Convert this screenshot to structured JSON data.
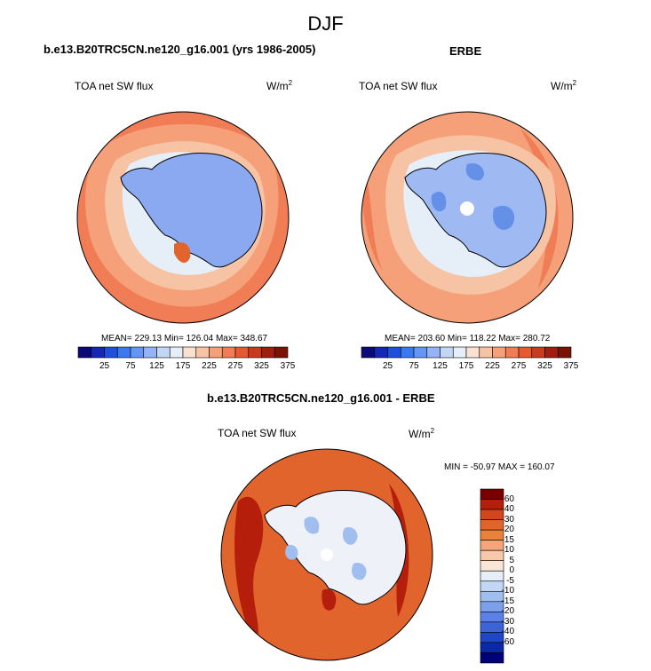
{
  "figure": {
    "title": "DJF"
  },
  "panel_model": {
    "title": "b.e13.B20TRC5CN.ne120_g16.001 (yrs 1986-2005)",
    "variable": "TOA net SW flux",
    "units_base": "W/m",
    "units_exp": "2",
    "stats": "MEAN= 229.13  Min= 126.04  Max= 348.67"
  },
  "panel_obs": {
    "title": "ERBE",
    "variable": "TOA net SW flux",
    "units_base": "W/m",
    "units_exp": "2",
    "stats": "MEAN= 203.60  Min= 118.22  Max= 280.72"
  },
  "panel_diff": {
    "title": "b.e13.B20TRC5CN.ne120_g16.001 - ERBE",
    "variable": "TOA net SW flux",
    "units_base": "W/m",
    "units_exp": "2",
    "stats": "MIN = -50.97 MAX = 160.07"
  },
  "colorbar_abs": {
    "colors": [
      "#0a0a78",
      "#1428b4",
      "#1e50dc",
      "#3c78f0",
      "#6496f5",
      "#96b4f5",
      "#c3d7f5",
      "#e6eef8",
      "#fbe1d2",
      "#f7c3a5",
      "#f5a078",
      "#f07d55",
      "#e65a32",
      "#c83c1e",
      "#a01e0f",
      "#781405"
    ],
    "tick_labels": [
      "25",
      "75",
      "125",
      "175",
      "225",
      "275",
      "325",
      "375"
    ]
  },
  "colorbar_diff": {
    "colors": [
      "#780000",
      "#b41e0a",
      "#d2461e",
      "#e1642d",
      "#eb823c",
      "#f5a578",
      "#f7c8aa",
      "#fae6d7",
      "#e6eef8",
      "#c3d7f5",
      "#a0bef0",
      "#7da0eb",
      "#5a82e6",
      "#3c64d7",
      "#1e46c8",
      "#0a28aa",
      "#000078"
    ],
    "tick_labels": [
      "60",
      "40",
      "30",
      "20",
      "15",
      "10",
      "5",
      "0",
      "-5",
      "-10",
      "-15",
      "-20",
      "-30",
      "-40",
      "-60"
    ]
  },
  "map_colors": {
    "ocean_warm": "#f07d55",
    "ocean_mid": "#f5a078",
    "ocean_light": "#f7c3a5",
    "ice_pale": "#e6eef8",
    "land_blue": "#8aa9f0",
    "land_blue_obs": "#9fbaf2",
    "land_blue_deep": "#6490e8",
    "diff_red": "#e1642d",
    "diff_red_deep": "#b41e0a",
    "diff_white": "#eef2f8",
    "diff_blue": "#a0bef0"
  }
}
